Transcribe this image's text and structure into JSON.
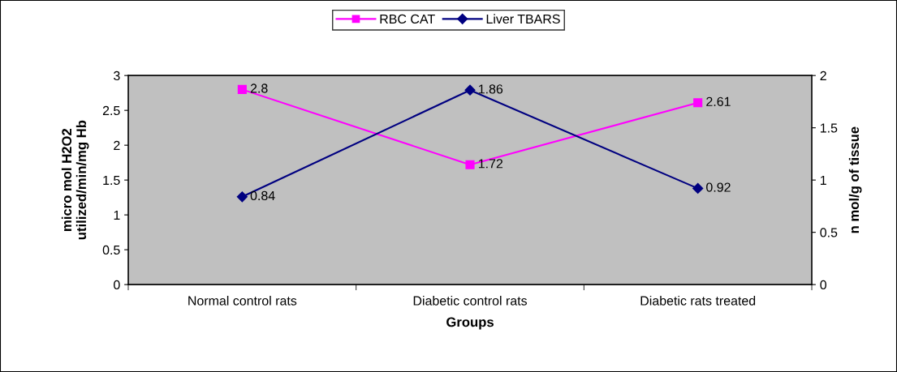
{
  "chart_data": {
    "type": "line",
    "xlabel": "Groups",
    "ylabel": "micro mol H2O2\nutilized/min/mg Hb",
    "y2label": "n mol/g of tissue",
    "categories": [
      "Normal control rats",
      "Diabetic control rats",
      "Diabetic rats treated"
    ],
    "series": [
      {
        "name": "RBC CAT",
        "color": "#ff00ff",
        "values": [
          2.8,
          1.72,
          2.61
        ],
        "marker": "square"
      },
      {
        "name": "Liver TBARS",
        "color": "#000080",
        "values": [
          0.84,
          1.86,
          0.92
        ],
        "marker": "diamond",
        "axis": "y2"
      }
    ],
    "ylim": [
      0,
      3
    ],
    "yticks": [
      0,
      0.5,
      1,
      1.5,
      2,
      2.5,
      3
    ],
    "y2lim": [
      0,
      2
    ],
    "y2ticks": [
      0,
      0.5,
      1,
      1.5,
      2
    ],
    "data_labels": true,
    "legend": "top",
    "grid": false
  }
}
